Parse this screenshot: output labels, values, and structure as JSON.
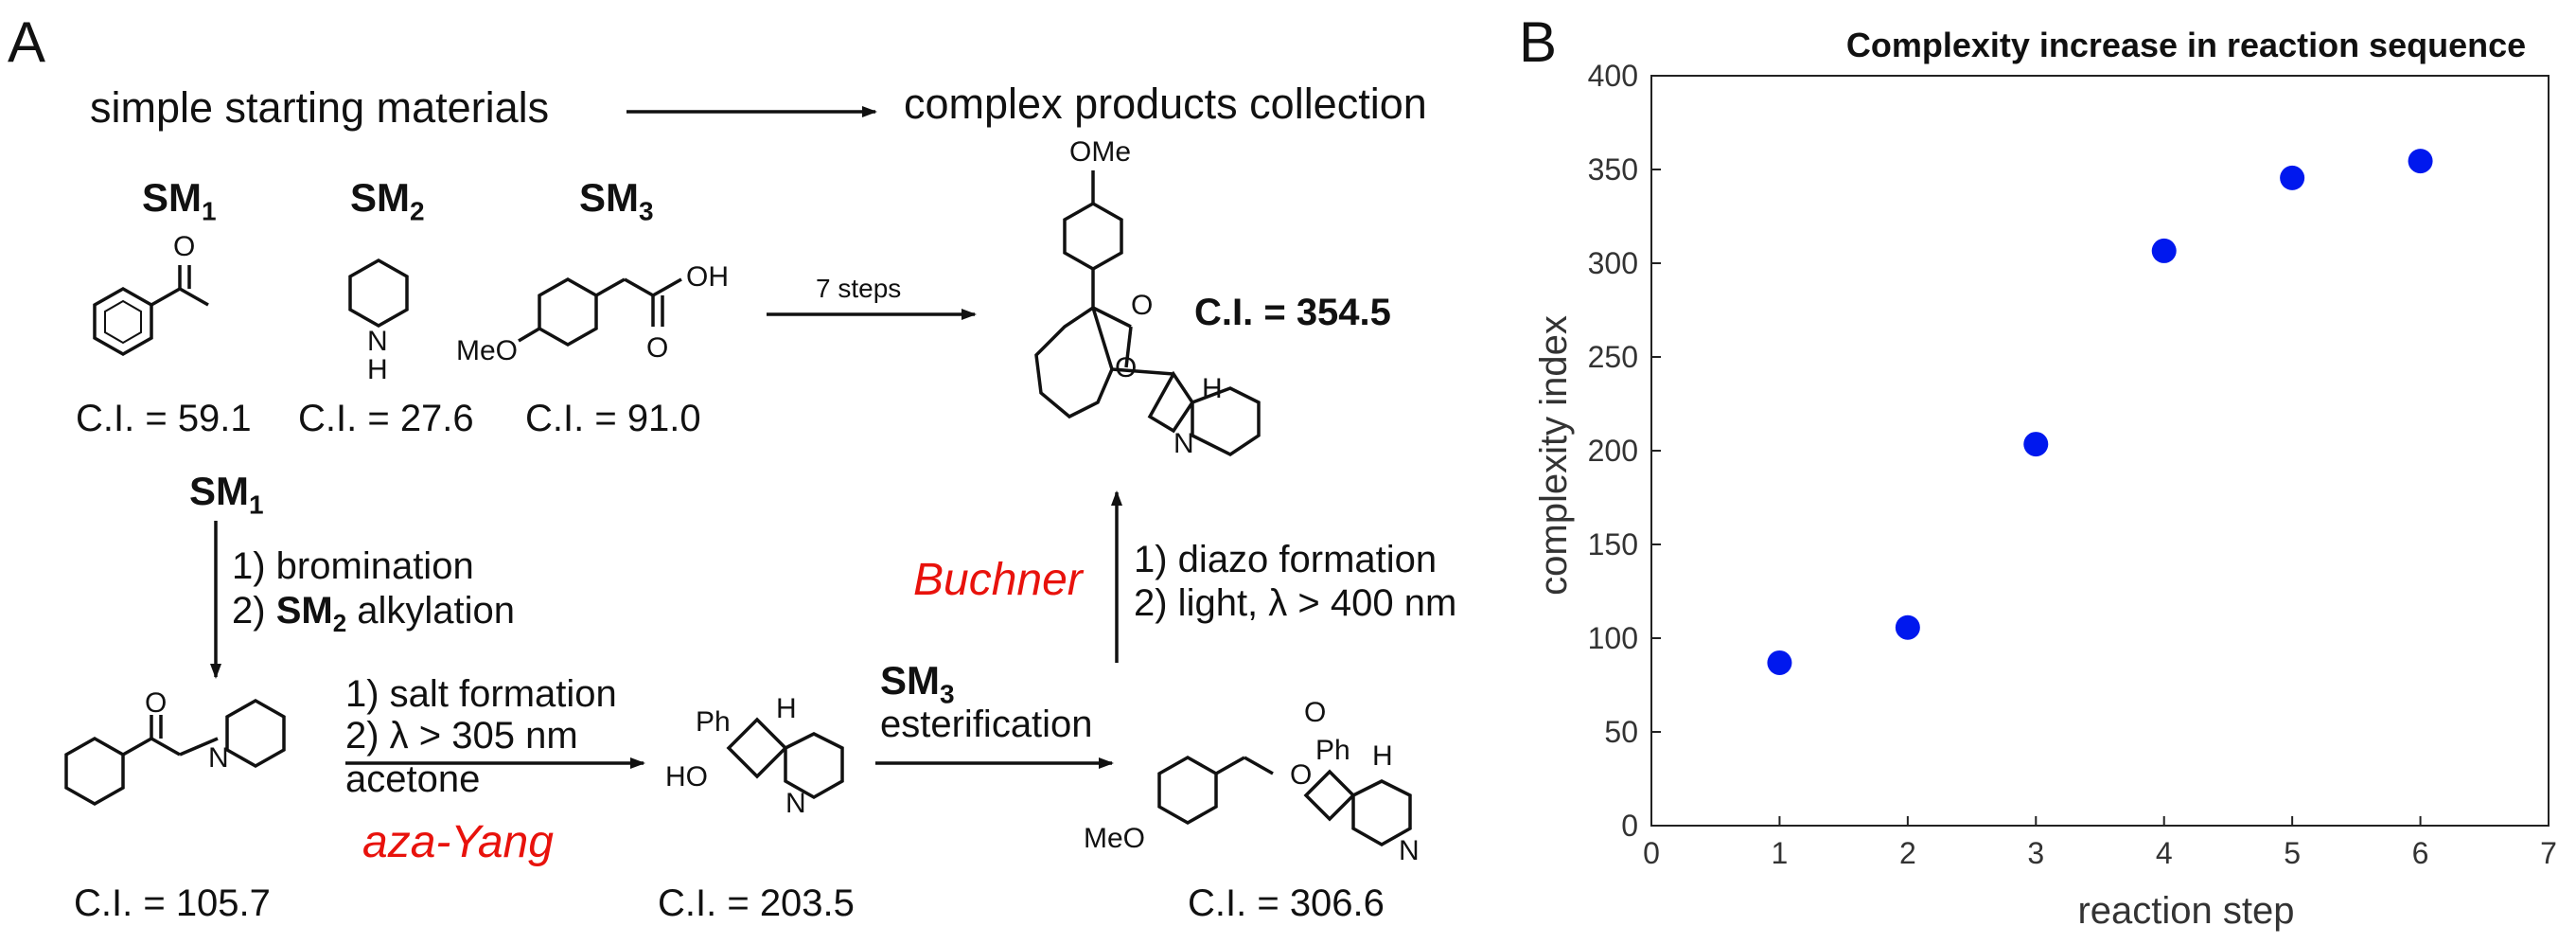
{
  "panel_a": {
    "letter": "A",
    "start_text": "simple starting materials",
    "end_text": "complex products collection",
    "sm1": "SM",
    "sm2": "SM",
    "sm3": "SM",
    "sub1": "1",
    "sub2": "2",
    "sub3": "3",
    "ci_sm1": "C.I. = 59.1",
    "ci_sm2": "C.I. = 27.6",
    "ci_sm3": "C.I. = 91.0",
    "seven_steps": "7 steps",
    "ci_final": "C.I. = 354.5",
    "ome_top": "OMe",
    "h_final": "H",
    "n_final": "N",
    "o_final": "O",
    "o_final2": "O",
    "o_sm1": "O",
    "oh_sm3": "OH",
    "o_sm3": "O",
    "meo_sm3": "MeO",
    "nh_n": "N",
    "nh_h": "H",
    "sm1_label2": "SM",
    "sm1_label2_sub": "1",
    "step1_line1": "1) bromination",
    "step1_line2_pre": "2) ",
    "step1_line2_bold": "SM",
    "step1_line2_sub": "2",
    "step1_line2_post": " alkylation",
    "buchner": "Buchner",
    "diazo_line1": "1) diazo formation",
    "diazo_line2": "2) light, λ > 400 nm",
    "salt_line1": "1) salt formation",
    "salt_line2": "2) λ > 305 nm",
    "salt_line3": "acetone",
    "aza_yang": "aza-Yang",
    "sm3_ester_bold": "SM",
    "sm3_ester_sub": "3",
    "esterification": "esterification",
    "ci_105": "C.I. = 105.7",
    "ci_203": "C.I. = 203.5",
    "ci_306": "C.I. = 306.6",
    "o_ketone": "O",
    "n_ketone": "N",
    "ph_mid": "Ph",
    "h_mid": "H",
    "ho_mid": "HO",
    "n_mid": "N",
    "o_ester": "O",
    "o_ester2": "O",
    "ph_ester": "Ph",
    "h_ester": "H",
    "meo_ester": "MeO",
    "n_ester": "N"
  },
  "panel_b": {
    "letter": "B"
  },
  "chart_data": {
    "type": "scatter",
    "title": "Complexity increase in reaction sequence",
    "xlabel": "reaction step",
    "ylabel": "complexity index",
    "xlim": [
      0,
      7
    ],
    "ylim": [
      0,
      400
    ],
    "xticks": [
      0,
      1,
      2,
      3,
      4,
      5,
      6,
      7
    ],
    "yticks": [
      0,
      50,
      100,
      150,
      200,
      250,
      300,
      350,
      400
    ],
    "grid": false,
    "marker_color": "#0018ee",
    "x": [
      1,
      2,
      3,
      4,
      5,
      6
    ],
    "y": [
      86.9,
      105.7,
      203.5,
      306.6,
      345.5,
      354.5
    ]
  }
}
